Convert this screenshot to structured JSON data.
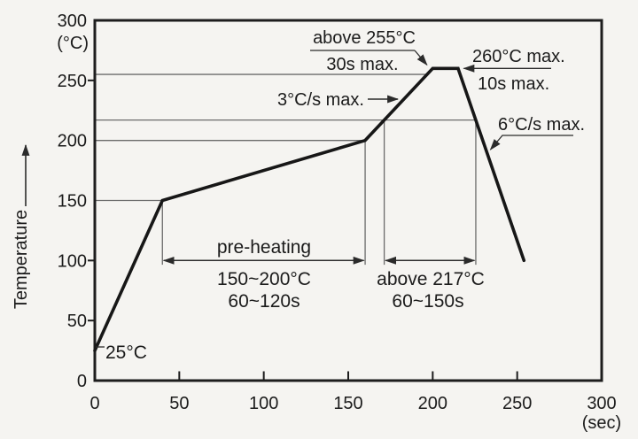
{
  "figure": {
    "background": "#f5f4f1",
    "curve_color": "#171717",
    "frame_color": "#1d1d1d",
    "thin_line_color": "#6b6b6b",
    "arrow_line_color": "#2b2b2b"
  },
  "chart_data": {
    "type": "line",
    "title": "",
    "xlabel": "(sec)",
    "ylabel": "Temperature",
    "ylabel_unit": "(°C)",
    "xlim": [
      0,
      300
    ],
    "ylim": [
      0,
      300
    ],
    "x_ticks": [
      0,
      50,
      100,
      150,
      200,
      250,
      300
    ],
    "y_ticks": [
      0,
      50,
      100,
      150,
      200,
      250,
      300
    ],
    "x_tick_marks": [
      50,
      100,
      150,
      200,
      250
    ],
    "y_tick_marks": [
      50,
      100,
      250
    ],
    "grid": false,
    "legend": "none",
    "series": [
      {
        "name": "temperature-profile",
        "points": [
          [
            0,
            25
          ],
          [
            40,
            150
          ],
          [
            160,
            200
          ],
          [
            200,
            260
          ],
          [
            215,
            260
          ],
          [
            254,
            100
          ]
        ]
      }
    ],
    "reference_lines": [
      {
        "temp": 255,
        "from_sec": 0,
        "to_sec": 196.7
      },
      {
        "temp": 217,
        "from_sec": 0,
        "to_sec": 225.5
      },
      {
        "temp": 200,
        "from_sec": 0,
        "to_sec": 160
      },
      {
        "temp": 150,
        "from_sec": 0,
        "to_sec": 40
      }
    ],
    "drop_lines": [
      {
        "sec": 40,
        "from_temp": 150,
        "to_temp": 96.5
      },
      {
        "sec": 160,
        "from_temp": 200,
        "to_temp": 96.5
      },
      {
        "sec": 171.3,
        "from_temp": 217,
        "to_temp": 96.5
      },
      {
        "sec": 225.5,
        "from_temp": 217,
        "to_temp": 96.5
      }
    ],
    "span_arrows": [
      {
        "name": "preheating-span",
        "from_sec": 40,
        "to_sec": 160,
        "temp": 100
      },
      {
        "name": "above-217-span",
        "from_sec": 171.3,
        "to_sec": 225.5,
        "temp": 100
      }
    ],
    "annotations": {
      "peak_window": {
        "line1": "above 255°C",
        "line2": "30s max."
      },
      "peak_max": {
        "line1": "260°C max.",
        "line2": "10s max."
      },
      "ramp_up": {
        "label": "3°C/s max."
      },
      "ramp_down": {
        "label": "6°C/s max."
      },
      "preheating": {
        "title": "pre-heating",
        "range": "150~200°C",
        "duration": "60~120s"
      },
      "above_217": {
        "range": "above 217°C",
        "duration": "60~150s"
      },
      "start_temp": {
        "label": "25°C"
      }
    }
  }
}
